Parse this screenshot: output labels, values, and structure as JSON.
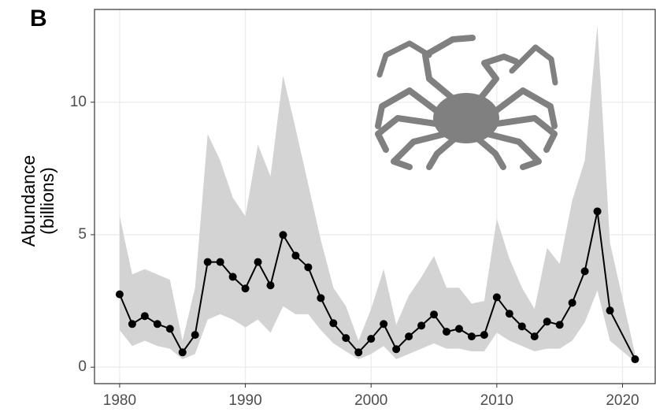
{
  "chart_data": {
    "type": "line",
    "panel_label": "B",
    "ylabel": [
      "Abundance",
      "(billions)"
    ],
    "x": [
      1980,
      1981,
      1982,
      1983,
      1984,
      1985,
      1986,
      1987,
      1988,
      1989,
      1990,
      1991,
      1992,
      1993,
      1994,
      1995,
      1996,
      1997,
      1998,
      1999,
      2000,
      2001,
      2002,
      2003,
      2004,
      2005,
      2006,
      2007,
      2008,
      2009,
      2010,
      2011,
      2012,
      2013,
      2014,
      2015,
      2016,
      2017,
      2018,
      2019,
      2021
    ],
    "series": [
      {
        "color": "#000000",
        "values": [
          2.75,
          1.63,
          1.93,
          1.63,
          1.45,
          0.56,
          1.22,
          3.97,
          3.97,
          3.41,
          2.97,
          3.97,
          3.09,
          4.99,
          4.21,
          3.77,
          2.61,
          1.66,
          1.1,
          0.56,
          1.07,
          1.63,
          0.68,
          1.16,
          1.57,
          1.99,
          1.34,
          1.45,
          1.16,
          1.22,
          2.64,
          2.02,
          1.54,
          1.16,
          1.72,
          1.6,
          2.43,
          3.62,
          5.88,
          2.14,
          0.3
        ]
      }
    ],
    "band": {
      "color": "#d3d3d3",
      "upper": [
        5.7,
        3.5,
        3.7,
        3.5,
        3.3,
        1.0,
        3.0,
        8.8,
        7.8,
        6.4,
        5.7,
        8.4,
        7.2,
        11.0,
        9.0,
        6.9,
        4.8,
        3.0,
        2.3,
        1.0,
        2.2,
        3.7,
        1.6,
        2.7,
        3.4,
        4.2,
        3.0,
        3.0,
        2.4,
        2.5,
        5.6,
        4.1,
        3.0,
        2.2,
        4.5,
        3.9,
        6.3,
        7.8,
        12.9,
        4.7,
        0.5
      ],
      "lower": [
        1.4,
        0.8,
        1.0,
        0.8,
        0.7,
        0.3,
        0.5,
        1.8,
        2.0,
        1.8,
        1.5,
        1.8,
        1.3,
        2.3,
        2.0,
        2.0,
        1.4,
        0.9,
        0.6,
        0.3,
        0.5,
        0.8,
        0.3,
        0.5,
        0.7,
        0.9,
        0.7,
        0.7,
        0.6,
        0.6,
        1.3,
        1.0,
        0.8,
        0.6,
        0.7,
        0.7,
        1.0,
        1.7,
        2.9,
        1.0,
        0.2
      ]
    },
    "xlim": [
      1978,
      2022.6
    ],
    "ylim": [
      -0.62,
      13.5
    ],
    "xticks": [
      1980,
      1990,
      2000,
      2010,
      2020
    ],
    "yticks": [
      0,
      5,
      10
    ],
    "grid": true
  }
}
